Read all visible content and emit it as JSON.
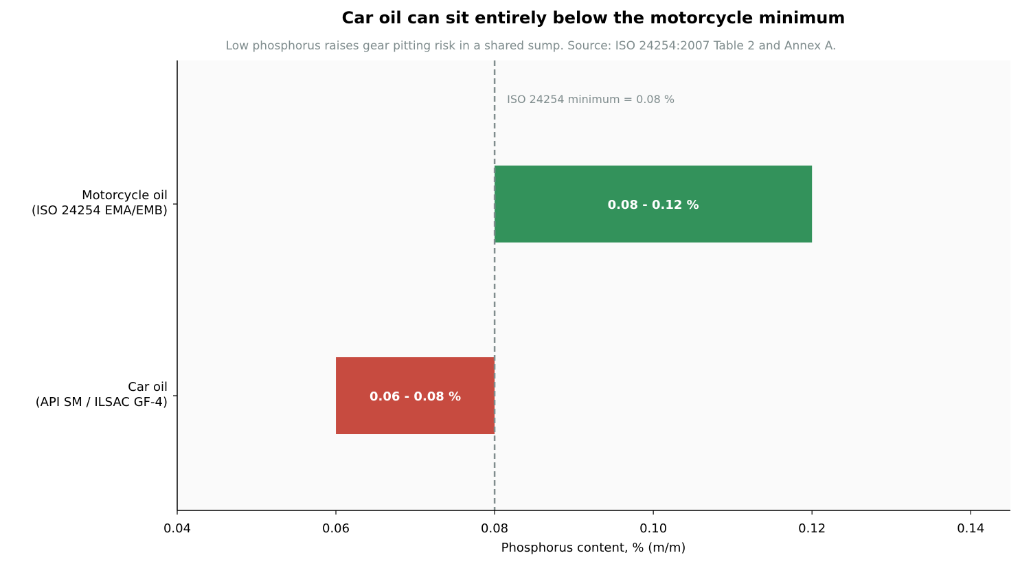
{
  "chart_data": {
    "type": "bar",
    "orientation": "horizontal",
    "title": "Car oil can sit entirely below the motorcycle minimum",
    "subtitle": "Low phosphorus raises gear pitting risk in a shared sump. Source: ISO 24254:2007 Table 2 and Annex A.",
    "xlabel": "Phosphorus content, % (m/m)",
    "ylabel": "",
    "xlim": [
      0.04,
      0.145
    ],
    "x_ticks": [
      "0.04",
      "0.06",
      "0.08",
      "0.10",
      "0.12",
      "0.14"
    ],
    "x_tick_values": [
      0.04,
      0.06,
      0.08,
      0.1,
      0.12,
      0.14
    ],
    "grid": false,
    "categories": [
      {
        "lines": [
          "Motorcycle oil",
          "(ISO 24254 EMA/EMB)"
        ],
        "low": 0.08,
        "high": 0.12,
        "label": "0.08 - 0.12 %",
        "color": "#33925b"
      },
      {
        "lines": [
          "Car oil",
          "(API SM / ILSAC GF-4)"
        ],
        "low": 0.06,
        "high": 0.08,
        "label": "0.06 - 0.08 %",
        "color": "#c74b40"
      }
    ],
    "reference_line": {
      "value": 0.08,
      "label": "ISO 24254 minimum = 0.08 %",
      "color": "#7f8c8d"
    },
    "plot_background": "#fafafa"
  }
}
